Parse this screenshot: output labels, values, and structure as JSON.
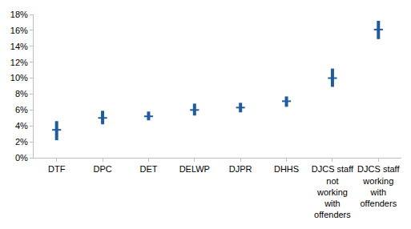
{
  "chart_data": {
    "type": "scatter",
    "categories": [
      "DTF",
      "DPC",
      "DET",
      "DELWP",
      "DJPR",
      "DHHS",
      "DJCS staff not working with offenders",
      "DJCS staff working with offenders"
    ],
    "values": [
      3.5,
      5.0,
      5.2,
      6.0,
      6.3,
      7.1,
      10.0,
      16.1
    ],
    "ci_lower": [
      2.2,
      4.2,
      4.7,
      5.3,
      5.7,
      6.4,
      8.9,
      14.9
    ],
    "ci_upper": [
      4.6,
      5.9,
      5.8,
      6.8,
      6.9,
      7.7,
      11.2,
      17.2
    ],
    "color": "#1f5c99",
    "marker": "dash",
    "ylim": [
      0,
      18
    ],
    "yticks": [
      {
        "value": 0,
        "label": "0%"
      },
      {
        "value": 2,
        "label": "2%"
      },
      {
        "value": 4,
        "label": "4%"
      },
      {
        "value": 6,
        "label": "6%"
      },
      {
        "value": 8,
        "label": "8%"
      },
      {
        "value": 10,
        "label": "10%"
      },
      {
        "value": 12,
        "label": "12%"
      },
      {
        "value": 14,
        "label": "14%"
      },
      {
        "value": 16,
        "label": "16%"
      },
      {
        "value": 18,
        "label": "18%"
      }
    ],
    "grid": false
  }
}
